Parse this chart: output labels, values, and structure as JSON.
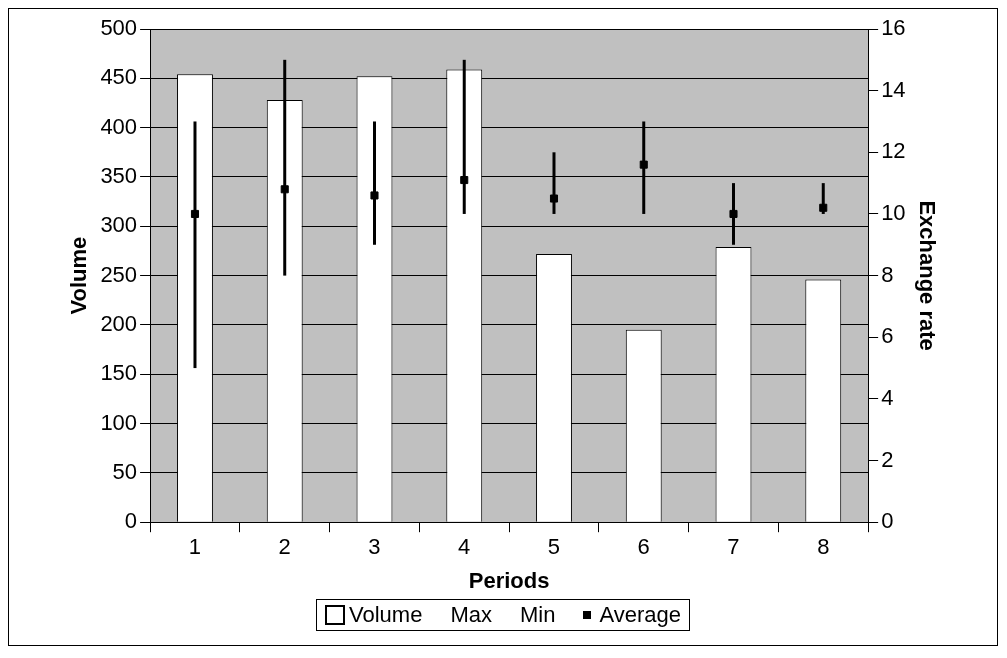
{
  "chart_data": {
    "type": "bar",
    "xlabel": "Periods",
    "ylabel": "Volume",
    "y2label": "Exchange rate",
    "categories": [
      "1",
      "2",
      "3",
      "4",
      "5",
      "6",
      "7",
      "8"
    ],
    "series": [
      {
        "name": "Volume",
        "color": "#ffffff",
        "values": [
          454,
          428,
          452,
          459,
          272,
          195,
          279,
          246
        ]
      },
      {
        "name": "Average",
        "type": "scatter",
        "axis": "y2",
        "marker": "square",
        "color": "#000000",
        "values": [
          10,
          10.8,
          10.6,
          11.1,
          10.5,
          11.6,
          10,
          10.2
        ],
        "errors": [
          [
            5,
            13
          ],
          [
            8,
            15
          ],
          [
            9,
            13
          ],
          [
            10,
            15
          ],
          [
            10,
            12
          ],
          [
            10,
            13
          ],
          [
            9,
            11
          ],
          [
            10,
            11
          ]
        ]
      }
    ],
    "annotations": [
      "Max",
      "Min"
    ],
    "ylim": [
      0,
      500
    ],
    "yticks": [
      0,
      50,
      100,
      150,
      200,
      250,
      300,
      350,
      400,
      450,
      500
    ],
    "y2lim": [
      0,
      16
    ],
    "y2ticks": [
      0,
      2,
      4,
      6,
      8,
      10,
      12,
      14,
      16
    ],
    "grid": "y",
    "legend": "bottom"
  }
}
